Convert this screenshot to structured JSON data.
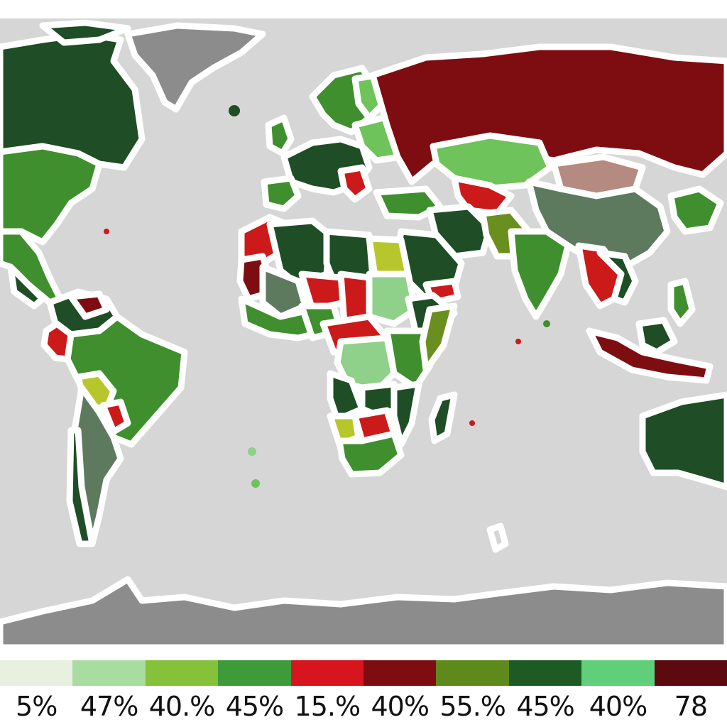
{
  "map": {
    "background_color": "#d6d6d6",
    "polar_color": "#8c8c8c",
    "palette": {
      "dark_green": "#1f4d26",
      "green": "#3f8f2e",
      "light_green": "#6ec35a",
      "pale_green": "#8fd08a",
      "olive": "#6b8f1f",
      "yellow_green": "#b7c72b",
      "red": "#cc1a1a",
      "dark_red": "#7e0d12",
      "gray_green": "#5e7a5e",
      "gray": "#7a7a7a",
      "rose": "#b58a80"
    }
  },
  "legend": {
    "items": [
      {
        "label": "5%",
        "color": "#e8f0e0"
      },
      {
        "label": "47%",
        "color": "#a8dca0"
      },
      {
        "label": "40.%",
        "color": "#86c13a"
      },
      {
        "label": "45%",
        "color": "#3f9a3a"
      },
      {
        "label": "15.%",
        "color": "#d8141e"
      },
      {
        "label": "40%",
        "color": "#7e0d12"
      },
      {
        "label": "55.%",
        "color": "#5e8a1c"
      },
      {
        "label": "45%",
        "color": "#1e5a24"
      },
      {
        "label": "40%",
        "color": "#5fcf7a"
      },
      {
        "label": "78",
        "color": "#5c0a10"
      }
    ]
  }
}
